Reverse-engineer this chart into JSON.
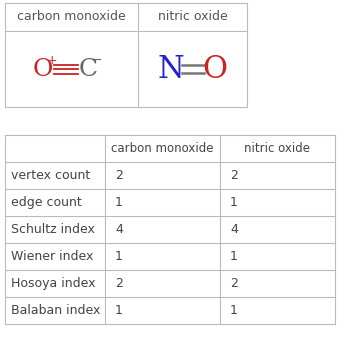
{
  "top_table": {
    "col_headers": [
      "carbon monoxide",
      "nitric oxide"
    ],
    "border_color": "#bbbbbb",
    "bg_color": "#ffffff"
  },
  "bottom_table": {
    "row_labels": [
      "",
      "vertex count",
      "edge count",
      "Schultz index",
      "Wiener index",
      "Hosoya index",
      "Balaban index"
    ],
    "col_headers": [
      "carbon monoxide",
      "nitric oxide"
    ],
    "data": [
      [
        "2",
        "2"
      ],
      [
        "1",
        "1"
      ],
      [
        "4",
        "4"
      ],
      [
        "1",
        "1"
      ],
      [
        "2",
        "2"
      ],
      [
        "1",
        "1"
      ]
    ],
    "text_color": "#444444",
    "border_color": "#bbbbbb"
  },
  "co_formula": {
    "O_color": "#cc2222",
    "C_color": "#666666",
    "bond_color": "#cc2222"
  },
  "no_formula": {
    "N_color": "#2222cc",
    "O_color": "#cc2222",
    "bond_color": "#777777"
  },
  "fig_bg": "#ffffff",
  "text_color": "#555555"
}
